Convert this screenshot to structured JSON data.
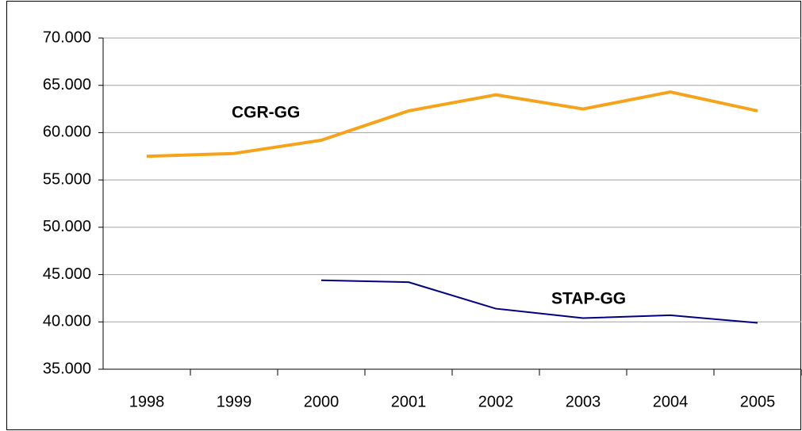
{
  "chart_data": {
    "type": "line",
    "categories": [
      "1998",
      "1999",
      "2000",
      "2001",
      "2002",
      "2003",
      "2004",
      "2005"
    ],
    "series": [
      {
        "name": "CGR-GG",
        "color": "#f7a21b",
        "values": [
          57500,
          57800,
          59200,
          62300,
          64000,
          62500,
          64300,
          62300
        ]
      },
      {
        "name": "STAP-GG",
        "color": "#000080",
        "values": [
          null,
          null,
          44400,
          44200,
          41400,
          40400,
          40700,
          39900
        ]
      }
    ],
    "ylim": [
      35000,
      70000
    ],
    "yticks": [
      {
        "value": 35000,
        "label": "35.000"
      },
      {
        "value": 40000,
        "label": "40.000"
      },
      {
        "value": 45000,
        "label": "45.000"
      },
      {
        "value": 50000,
        "label": "50.000"
      },
      {
        "value": 55000,
        "label": "55.000"
      },
      {
        "value": 60000,
        "label": "60.000"
      },
      {
        "value": 65000,
        "label": "65.000"
      },
      {
        "value": 70000,
        "label": "70.000"
      }
    ],
    "grid": true
  }
}
